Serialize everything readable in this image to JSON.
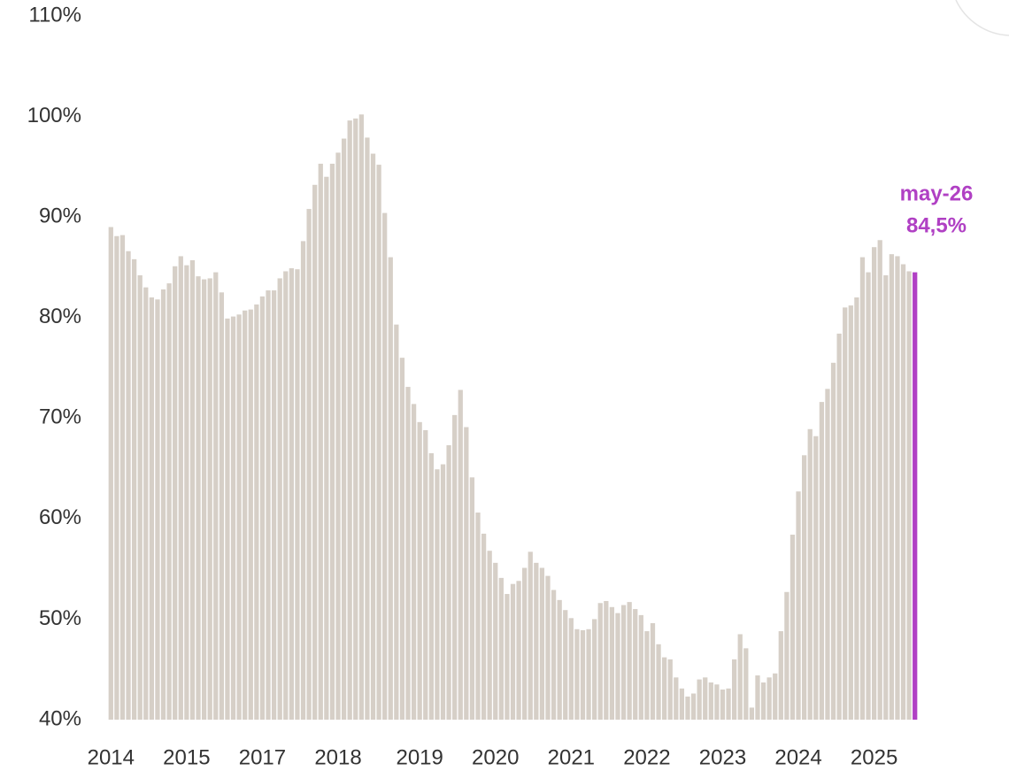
{
  "chart_data": {
    "type": "bar",
    "color": "#d6cfc7",
    "categories": [
      "2014",
      null,
      null,
      null,
      null,
      null,
      null,
      null,
      null,
      null,
      null,
      null,
      null,
      "2015",
      null,
      null,
      null,
      null,
      null,
      null,
      null,
      null,
      null,
      null,
      null,
      null,
      "2017",
      null,
      null,
      null,
      null,
      null,
      null,
      null,
      null,
      null,
      null,
      null,
      null,
      "2018",
      null,
      null,
      null,
      null,
      null,
      null,
      null,
      null,
      null,
      null,
      null,
      null,
      null,
      "2019",
      null,
      null,
      null,
      null,
      null,
      null,
      null,
      null,
      null,
      null,
      null,
      null,
      "2020",
      null,
      null,
      null,
      null,
      null,
      null,
      null,
      null,
      null,
      null,
      null,
      null,
      "2021",
      null,
      null,
      null,
      null,
      null,
      null,
      null,
      null,
      null,
      null,
      null,
      null,
      "2022",
      null,
      null,
      null,
      null,
      null,
      null,
      null,
      null,
      null,
      null,
      null,
      null,
      "2023",
      null,
      null,
      null,
      null,
      null,
      null,
      null,
      null,
      null,
      null,
      null,
      null,
      "2024",
      null,
      null,
      null,
      null,
      null,
      null,
      null,
      null,
      null,
      null,
      null,
      null,
      "2025",
      null,
      null,
      null,
      null,
      null,
      null,
      null
    ],
    "values": [
      89,
      88.1,
      88.2,
      86.6,
      85.8,
      84.2,
      83,
      82,
      81.8,
      82.8,
      83.4,
      85.1,
      86.1,
      85.2,
      85.7,
      84.1,
      83.8,
      83.9,
      84.5,
      82.5,
      79.9,
      80.1,
      80.3,
      80.7,
      80.8,
      81.3,
      82.1,
      82.7,
      82.7,
      83.9,
      84.6,
      84.9,
      84.8,
      87.6,
      90.8,
      93.2,
      95.3,
      94,
      95.3,
      96.4,
      97.8,
      99.6,
      99.8,
      100.2,
      97.9,
      96.3,
      95.2,
      90.4,
      86,
      79.3,
      76,
      73.1,
      71.4,
      69.6,
      68.8,
      66.5,
      64.9,
      65.4,
      67.3,
      70.3,
      72.8,
      69.1,
      64.1,
      60.6,
      58.5,
      56.8,
      55.6,
      54.1,
      52.5,
      53.5,
      53.8,
      55.1,
      56.7,
      55.6,
      55.1,
      54.3,
      52.9,
      51.9,
      50.9,
      50.1,
      49,
      48.9,
      49,
      50,
      51.6,
      51.8,
      51.2,
      50.6,
      51.4,
      51.7,
      51,
      50.4,
      48.8,
      49.6,
      47.5,
      46.2,
      46,
      44.2,
      43.1,
      42.3,
      42.6,
      44,
      44.2,
      43.7,
      43.5,
      43,
      43.1,
      46,
      48.5,
      47.1,
      41.2,
      44.4,
      43.7,
      44.2,
      44.6,
      48.8,
      52.7,
      58.4,
      62.7,
      66.3,
      68.9,
      68.2,
      71.6,
      72.9,
      75.5,
      78.4,
      81,
      81.2,
      82,
      86,
      84.5,
      87,
      87.7,
      84.2,
      86.3,
      86.1,
      85.3,
      84.6,
      84.5
    ],
    "ylim": [
      40,
      110
    ],
    "yticks": [
      {
        "value": 40,
        "label": "40%"
      },
      {
        "value": 50,
        "label": "50%"
      },
      {
        "value": 60,
        "label": "60%"
      },
      {
        "value": 70,
        "label": "70%"
      },
      {
        "value": 80,
        "label": "80%"
      },
      {
        "value": 90,
        "label": "90%"
      },
      {
        "value": 100,
        "label": "100%"
      },
      {
        "value": 110,
        "label": "110%"
      }
    ],
    "grid": false,
    "annotation": {
      "category": "may-26",
      "value_label": "84,5%",
      "color": "#b040c4"
    }
  }
}
